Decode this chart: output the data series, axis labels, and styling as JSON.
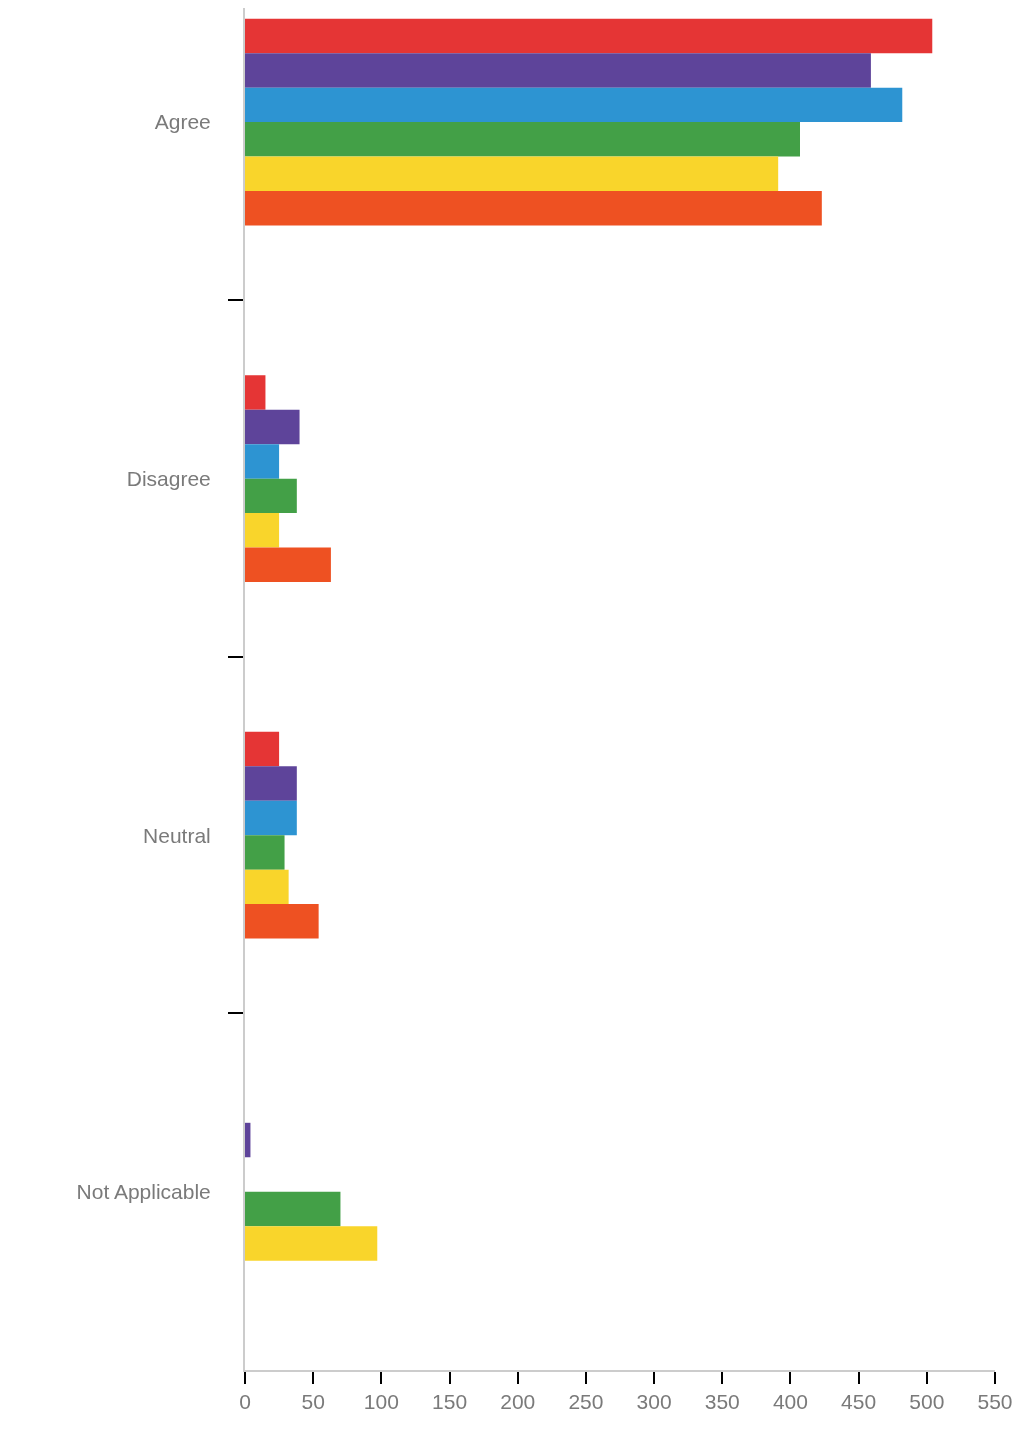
{
  "chart_data": {
    "type": "bar",
    "orientation": "horizontal",
    "categories": [
      "Agree",
      "Disagree",
      "Neutral",
      "Not Applicable"
    ],
    "series": [
      {
        "color": "#e53535",
        "values": [
          504,
          15,
          25,
          0
        ]
      },
      {
        "color": "#5e449a",
        "values": [
          459,
          40,
          38,
          4
        ]
      },
      {
        "color": "#2d94d2",
        "values": [
          482,
          25,
          38,
          0
        ]
      },
      {
        "color": "#43a047",
        "values": [
          407,
          38,
          29,
          70
        ]
      },
      {
        "color": "#f9d52b",
        "values": [
          391,
          25,
          32,
          97
        ]
      },
      {
        "color": "#ee5122",
        "values": [
          423,
          63,
          54,
          0
        ]
      }
    ],
    "xlim": [
      0,
      550
    ],
    "xticks": [
      0,
      50,
      100,
      150,
      200,
      250,
      300,
      350,
      400,
      450,
      500,
      550
    ]
  }
}
